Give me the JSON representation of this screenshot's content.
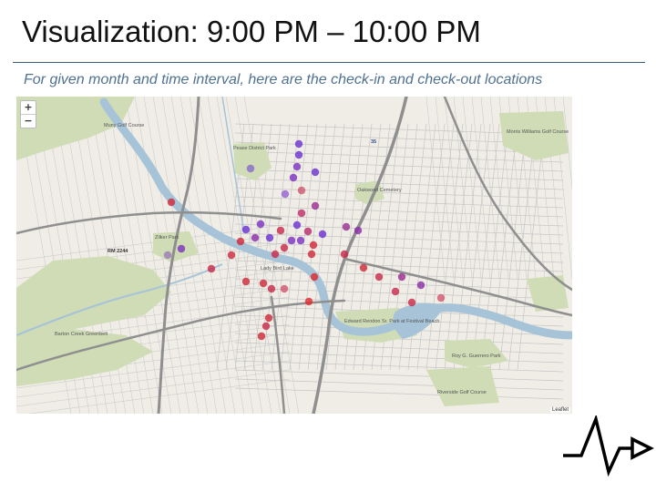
{
  "slide": {
    "title": "Visualization: 9:00 PM – 10:00 PM",
    "subtitle": "For given month and time interval, here are the check-in and check-out locations"
  },
  "map": {
    "zoom_in_label": "+",
    "zoom_out_label": "−",
    "attribution": "Leaflet",
    "labels": [
      {
        "text": "Muny Golf Course"
      },
      {
        "text": "Pease District Park"
      },
      {
        "text": "Oakwood Cemetery"
      },
      {
        "text": "Morris Williams Golf Course"
      },
      {
        "text": "Zilker Park"
      },
      {
        "text": "Lady Bird Lake"
      },
      {
        "text": "Edward Rendon Sr. Park at Festival Beach"
      },
      {
        "text": "Barton Creek Greenbelt"
      },
      {
        "text": "Roy G. Guerrero Park"
      },
      {
        "text": "Riverside Golf Course"
      },
      {
        "text": "35"
      },
      {
        "text": "RM 2244"
      }
    ],
    "colors": {
      "water": "#a6c3d8",
      "park": "#cfdcb6",
      "land": "#efede6",
      "road": "#c6c6c6",
      "highway": "#8f8f8f",
      "check_in": "#6a2fd0",
      "check_out": "#e0262e"
    }
  },
  "logo": {
    "icon": "heartbeat-arrow-icon"
  }
}
